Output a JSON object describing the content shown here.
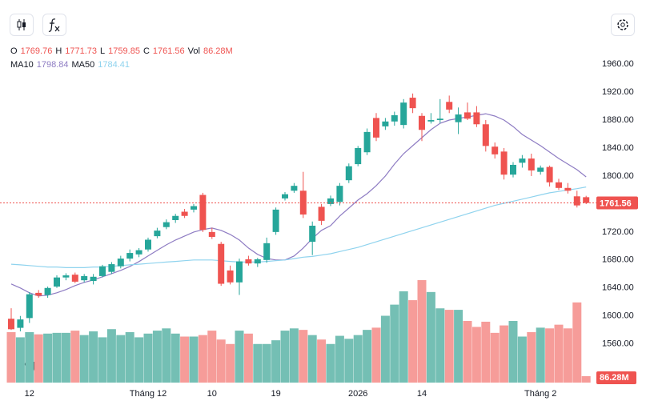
{
  "chart_data": {
    "type": "candlestick",
    "legend": {
      "open_label": "O",
      "high_label": "H",
      "low_label": "L",
      "close_label": "C",
      "volume_label": "Vol"
    },
    "up_color": "#26a69a",
    "down_color": "#ef5350",
    "volume_up_color": "#74bfb4",
    "volume_down_color": "#f69c99",
    "categories": [
      null,
      null,
      "12",
      null,
      null,
      null,
      null,
      null,
      null,
      null,
      null,
      null,
      null,
      null,
      null,
      "Tháng 12",
      null,
      null,
      null,
      null,
      null,
      null,
      "10",
      null,
      null,
      null,
      null,
      null,
      null,
      "19",
      null,
      null,
      null,
      null,
      null,
      null,
      null,
      null,
      "2026",
      null,
      null,
      null,
      null,
      null,
      null,
      "14",
      null,
      null,
      null,
      null,
      null,
      null,
      null,
      null,
      null,
      null,
      null,
      null,
      "Tháng 2",
      null,
      null,
      null,
      null,
      null
    ],
    "open": [
      1596,
      1583,
      1597,
      1633,
      1630,
      1642,
      1655,
      1659,
      1651,
      1650,
      1657,
      1663,
      1671,
      1682,
      1688,
      1695,
      1714,
      1727,
      1737,
      1749,
      1752,
      1773,
      1720,
      1703,
      1665,
      1648,
      1681,
      1675,
      1680,
      1720,
      1768,
      1779,
      1779,
      1706,
      1756,
      1760,
      1763,
      1794,
      1817,
      1834,
      1883,
      1871,
      1878,
      1873,
      1912,
      1886,
      1878,
      1880,
      1906,
      1877,
      1891,
      1891,
      1874,
      1842,
      1835,
      1802,
      1819,
      1825,
      1806,
      1813,
      1791,
      1783,
      1771,
      1769.76
    ],
    "high": [
      1611,
      1600,
      1634,
      1637,
      1642,
      1658,
      1661,
      1662,
      1660,
      1660,
      1673,
      1677,
      1686,
      1695,
      1697,
      1712,
      1726,
      1738,
      1746,
      1753,
      1760,
      1776,
      1726,
      1706,
      1672,
      1682,
      1686,
      1683,
      1712,
      1755,
      1777,
      1790,
      1806,
      1735,
      1760,
      1772,
      1790,
      1818,
      1843,
      1868,
      1890,
      1883,
      1892,
      1910,
      1918,
      1890,
      1890,
      1910,
      1915,
      1898,
      1905,
      1900,
      1880,
      1848,
      1840,
      1820,
      1830,
      1832,
      1815,
      1815,
      1796,
      1790,
      1779,
      1771.73
    ],
    "low": [
      1580,
      1578,
      1590,
      1626,
      1626,
      1640,
      1651,
      1647,
      1648,
      1645,
      1655,
      1660,
      1668,
      1678,
      1684,
      1692,
      1711,
      1724,
      1733,
      1740,
      1748,
      1720,
      1710,
      1643,
      1645,
      1630,
      1672,
      1670,
      1676,
      1716,
      1765,
      1776,
      1740,
      1687,
      1730,
      1757,
      1758,
      1790,
      1814,
      1830,
      1850,
      1866,
      1872,
      1868,
      1890,
      1850,
      1875,
      1876,
      1890,
      1860,
      1880,
      1870,
      1835,
      1825,
      1795,
      1798,
      1812,
      1800,
      1802,
      1785,
      1780,
      1775,
      1755,
      1759.85
    ],
    "close": [
      1581,
      1595,
      1631,
      1629,
      1640,
      1655,
      1658,
      1649,
      1657,
      1656,
      1671,
      1674,
      1682,
      1690,
      1694,
      1709,
      1722,
      1734,
      1743,
      1743,
      1757,
      1723,
      1713,
      1646,
      1648,
      1678,
      1675,
      1681,
      1704,
      1752,
      1774,
      1786,
      1745,
      1729,
      1736,
      1768,
      1786,
      1814,
      1840,
      1863,
      1855,
      1878,
      1887,
      1905,
      1897,
      1866,
      1880,
      1882,
      1895,
      1888,
      1882,
      1874,
      1843,
      1831,
      1802,
      1816,
      1825,
      1808,
      1812,
      1791,
      1783,
      1779,
      1758,
      1761.56
    ],
    "volume": {
      "values": [
        680,
        610,
        680,
        650,
        660,
        670,
        670,
        700,
        640,
        690,
        610,
        720,
        640,
        680,
        610,
        660,
        700,
        730,
        660,
        620,
        620,
        640,
        700,
        580,
        520,
        700,
        660,
        520,
        520,
        570,
        700,
        730,
        710,
        640,
        580,
        520,
        630,
        590,
        640,
        710,
        740,
        900,
        1050,
        1230,
        1110,
        1380,
        1220,
        1000,
        980,
        980,
        830,
        750,
        820,
        670,
        770,
        830,
        620,
        680,
        740,
        730,
        780,
        730,
        1080,
        86.28
      ],
      "value_labels": [
        null,
        null,
        null,
        null,
        null,
        null,
        null,
        null,
        null,
        null,
        null,
        null,
        null,
        null,
        null,
        null,
        null,
        null,
        null,
        null,
        null,
        null,
        null,
        null,
        null,
        null,
        null,
        null,
        null,
        null,
        null,
        null,
        null,
        null,
        null,
        null,
        null,
        null,
        null,
        null,
        null,
        null,
        null,
        null,
        null,
        null,
        null,
        null,
        null,
        null,
        null,
        null,
        null,
        null,
        null,
        null,
        null,
        null,
        null,
        null,
        null,
        null,
        null,
        "86.28M"
      ]
    },
    "series": [
      {
        "name": "MA10",
        "color": "#8e7cc3",
        "values": [
          1645.7,
          1640,
          1633.1,
          1628.5,
          1629.7,
          1633.1,
          1637.7,
          1643.4,
          1648,
          1651.4,
          1656,
          1660.5,
          1665.1,
          1670.8,
          1677.7,
          1685.7,
          1693.7,
          1701.7,
          1708.5,
          1714.2,
          1720,
          1723.4,
          1725.7,
          1722.3,
          1716.5,
          1708.5,
          1697.1,
          1688,
          1682.2,
          1680,
          1680,
          1685.7,
          1697.1,
          1710.8,
          1722.3,
          1729.1,
          1742.8,
          1754.2,
          1765.7,
          1774.8,
          1786.3,
          1800,
          1817.1,
          1832,
          1843.4,
          1854.8,
          1866.3,
          1875.4,
          1880,
          1882.3,
          1884.5,
          1886.8,
          1889.1,
          1885.7,
          1880,
          1870.8,
          1859.4,
          1851.4,
          1843.4,
          1834.3,
          1825.1,
          1817.1,
          1809.1,
          1798.84
        ]
      },
      {
        "name": "MA50",
        "color": "#8fd3ee",
        "values": [
          1674,
          1673,
          1672,
          1671,
          1670,
          1670,
          1669,
          1669,
          1669,
          1670,
          1670,
          1671,
          1672,
          1673,
          1674,
          1675,
          1676,
          1677,
          1678,
          1679,
          1680,
          1680,
          1680,
          1679,
          1678,
          1677,
          1677,
          1677,
          1678,
          1679,
          1680,
          1682,
          1684,
          1685,
          1687,
          1689,
          1692,
          1695,
          1698,
          1702,
          1706,
          1710,
          1714,
          1718,
          1722,
          1726,
          1730,
          1734,
          1738,
          1742,
          1746,
          1750,
          1754,
          1758,
          1761,
          1764,
          1767,
          1770,
          1773,
          1776,
          1778,
          1780,
          1782,
          1784.41
        ]
      }
    ],
    "ylim": [
      1491,
      1983
    ],
    "yticks": [
      {
        "value": 1560,
        "label": "1560.00"
      },
      {
        "value": 1600,
        "label": "1600.00"
      },
      {
        "value": 1640,
        "label": "1640.00"
      },
      {
        "value": 1680,
        "label": "1680.00"
      },
      {
        "value": 1720,
        "label": "1720.00"
      },
      {
        "value": 1760,
        "label": "1760.00"
      },
      {
        "value": 1800,
        "label": "1800.00"
      },
      {
        "value": 1840,
        "label": "1840.00"
      },
      {
        "value": 1880,
        "label": "1880.00"
      },
      {
        "value": 1920,
        "label": "1920.00"
      },
      {
        "value": 1960,
        "label": "1960.00"
      }
    ],
    "grid": false
  }
}
